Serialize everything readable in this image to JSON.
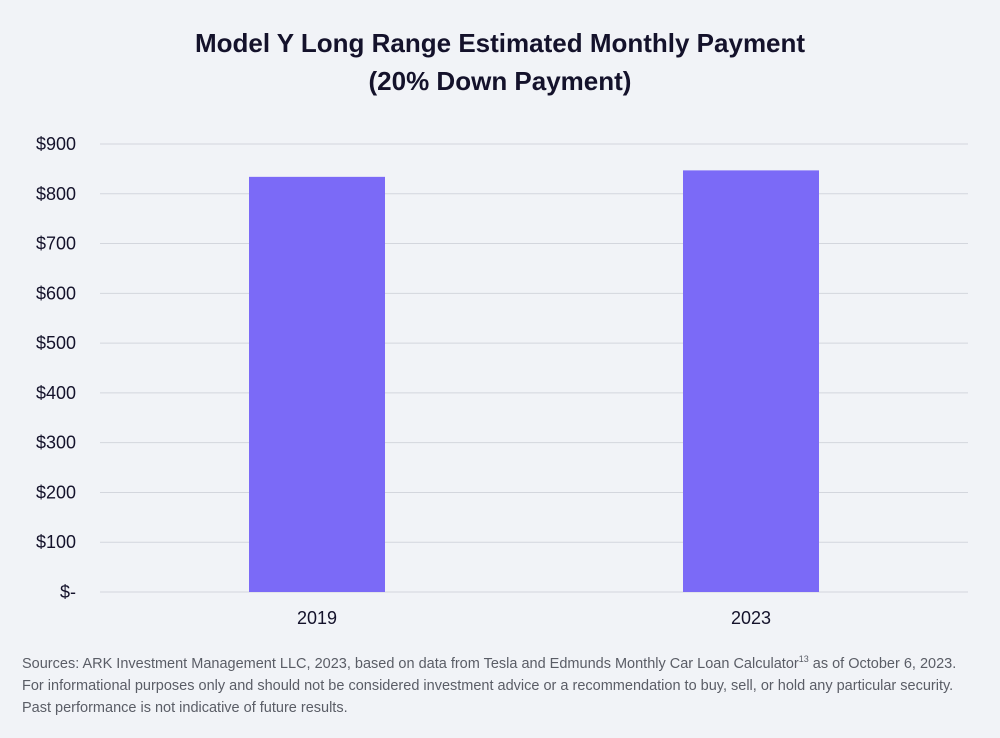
{
  "chart_data": {
    "type": "bar",
    "title": "Model Y Long Range Estimated Monthly Payment",
    "subtitle": "(20% Down Payment)",
    "categories": [
      "2019",
      "2023"
    ],
    "values": [
      834,
      847
    ],
    "ylim": [
      0,
      900
    ],
    "yticks": [
      {
        "value": 0,
        "label": "$-"
      },
      {
        "value": 100,
        "label": "$100"
      },
      {
        "value": 200,
        "label": "$200"
      },
      {
        "value": 300,
        "label": "$300"
      },
      {
        "value": 400,
        "label": "$400"
      },
      {
        "value": 500,
        "label": "$500"
      },
      {
        "value": 600,
        "label": "$600"
      },
      {
        "value": 700,
        "label": "$700"
      },
      {
        "value": 800,
        "label": "$800"
      },
      {
        "value": 900,
        "label": "$900"
      }
    ],
    "grid": true,
    "bar_color": "#7b6af7",
    "grid_color": "#d3d6dd"
  },
  "source": {
    "part1": "Sources: ARK Investment Management LLC, 2023, based on data from Tesla and Edmunds Monthly Car Loan Calculator",
    "superscript": "13",
    "part2": " as of October 6, 2023. For informational purposes only and should not be considered investment advice or a recommendation to buy, sell, or hold any particular security. Past performance is not indicative of future results."
  }
}
